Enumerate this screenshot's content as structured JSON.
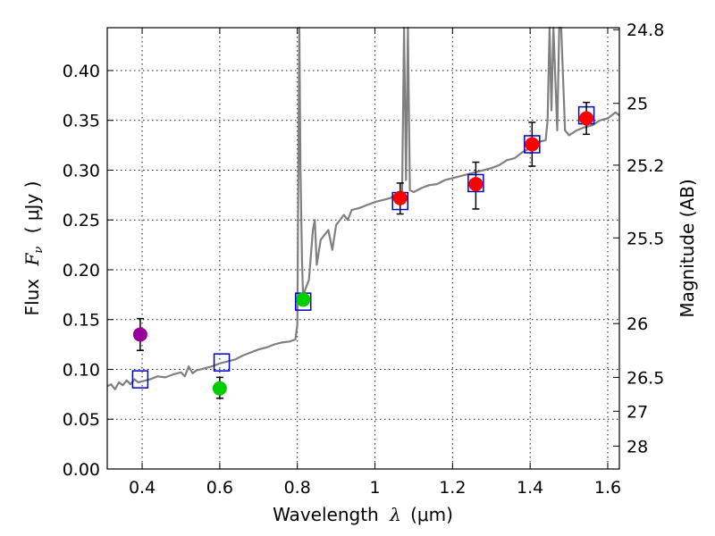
{
  "chart_data": {
    "type": "scatter",
    "xlabel": "Wavelength",
    "xlabel_symbol": "λ",
    "xlabel_unit": "(μm)",
    "ylabel": "Flux",
    "ylabel_symbol": "F",
    "ylabel_subscript": "ν",
    "ylabel_unit": "( μJy )",
    "y2label": "Magnitude (AB)",
    "xlim": [
      0.31,
      1.63
    ],
    "ylim": [
      0.0,
      0.443
    ],
    "grid": true,
    "x_ticks": [
      0.4,
      0.6,
      0.8,
      1.0,
      1.2,
      1.4,
      1.6
    ],
    "x_tick_labels": [
      "0.4",
      "0.6",
      "0.8",
      "1",
      "1.2",
      "1.4",
      "1.6"
    ],
    "y_ticks": [
      0.0,
      0.05,
      0.1,
      0.15,
      0.2,
      0.25,
      0.3,
      0.35,
      0.4
    ],
    "y_tick_labels": [
      "0.00",
      "0.05",
      "0.10",
      "0.15",
      "0.20",
      "0.25",
      "0.30",
      "0.35",
      "0.40"
    ],
    "y2_ticks": [
      {
        "label": "24.8",
        "flux": 0.441
      },
      {
        "label": "25",
        "flux": 0.367
      },
      {
        "label": "25.2",
        "flux": 0.305
      },
      {
        "label": "25.5",
        "flux": 0.232
      },
      {
        "label": "26",
        "flux": 0.146
      },
      {
        "label": "26.5",
        "flux": 0.092
      },
      {
        "label": "27",
        "flux": 0.058
      },
      {
        "label": "28",
        "flux": 0.023
      }
    ],
    "colors": {
      "spectrum": "#808080",
      "model_box": "#0000cc",
      "red_point": "#ff0000",
      "green_point": "#00cc00",
      "purple_point": "#990099",
      "error_bar": "#000000"
    },
    "series": [
      {
        "name": "Model spectrum",
        "kind": "line",
        "x": [
          0.31,
          0.32,
          0.33,
          0.34,
          0.35,
          0.36,
          0.37,
          0.38,
          0.39,
          0.4,
          0.42,
          0.44,
          0.46,
          0.48,
          0.5,
          0.51,
          0.52,
          0.53,
          0.54,
          0.56,
          0.58,
          0.6,
          0.62,
          0.64,
          0.66,
          0.68,
          0.7,
          0.72,
          0.74,
          0.76,
          0.78,
          0.795,
          0.8,
          0.805,
          0.808,
          0.812,
          0.815,
          0.82,
          0.83,
          0.84,
          0.845,
          0.85,
          0.86,
          0.87,
          0.88,
          0.89,
          0.9,
          0.91,
          0.92,
          0.93,
          0.94,
          0.96,
          0.98,
          1.0,
          1.02,
          1.04,
          1.05,
          1.06,
          1.07,
          1.075,
          1.08,
          1.085,
          1.09,
          1.1,
          1.12,
          1.14,
          1.16,
          1.18,
          1.2,
          1.22,
          1.24,
          1.26,
          1.28,
          1.3,
          1.32,
          1.34,
          1.36,
          1.38,
          1.4,
          1.42,
          1.44,
          1.445,
          1.45,
          1.455,
          1.46,
          1.47,
          1.475,
          1.48,
          1.49,
          1.5,
          1.52,
          1.54,
          1.56,
          1.58,
          1.6,
          1.62,
          1.63
        ],
        "y": [
          0.083,
          0.085,
          0.08,
          0.087,
          0.084,
          0.089,
          0.085,
          0.09,
          0.087,
          0.088,
          0.09,
          0.093,
          0.092,
          0.095,
          0.097,
          0.093,
          0.103,
          0.096,
          0.099,
          0.101,
          0.103,
          0.106,
          0.108,
          0.11,
          0.114,
          0.117,
          0.12,
          0.122,
          0.125,
          0.127,
          0.128,
          0.13,
          0.145,
          0.443,
          0.3,
          0.21,
          0.17,
          0.18,
          0.19,
          0.24,
          0.25,
          0.205,
          0.23,
          0.235,
          0.24,
          0.22,
          0.245,
          0.25,
          0.255,
          0.25,
          0.26,
          0.262,
          0.265,
          0.268,
          0.27,
          0.272,
          0.275,
          0.273,
          0.278,
          0.443,
          0.29,
          0.443,
          0.28,
          0.278,
          0.282,
          0.285,
          0.286,
          0.29,
          0.292,
          0.294,
          0.296,
          0.298,
          0.3,
          0.302,
          0.305,
          0.31,
          0.312,
          0.318,
          0.322,
          0.328,
          0.33,
          0.35,
          0.443,
          0.36,
          0.443,
          0.34,
          0.443,
          0.443,
          0.34,
          0.335,
          0.34,
          0.343,
          0.345,
          0.35,
          0.352,
          0.358,
          0.355
        ]
      },
      {
        "name": "Model photometry",
        "kind": "box",
        "x": [
          0.395,
          0.605,
          0.815,
          1.065,
          1.26,
          1.405,
          1.545
        ],
        "y": [
          0.09,
          0.107,
          0.168,
          0.269,
          0.287,
          0.326,
          0.355
        ]
      },
      {
        "name": "Observed (red)",
        "kind": "point",
        "x": [
          1.065,
          1.26,
          1.405,
          1.545
        ],
        "y": [
          0.272,
          0.286,
          0.326,
          0.352
        ],
        "err_low": [
          0.016,
          0.025,
          0.022,
          0.016
        ],
        "err_high": [
          0.015,
          0.022,
          0.022,
          0.016
        ]
      },
      {
        "name": "Observed (green)",
        "kind": "point",
        "x": [
          0.6,
          0.815
        ],
        "y": [
          0.081,
          0.17
        ],
        "err_low": [
          0.01,
          0.004
        ],
        "err_high": [
          0.011,
          0.004
        ]
      },
      {
        "name": "Observed (purple)",
        "kind": "point",
        "x": [
          0.395
        ],
        "y": [
          0.135
        ],
        "err_low": [
          0.016
        ],
        "err_high": [
          0.016
        ]
      }
    ]
  }
}
